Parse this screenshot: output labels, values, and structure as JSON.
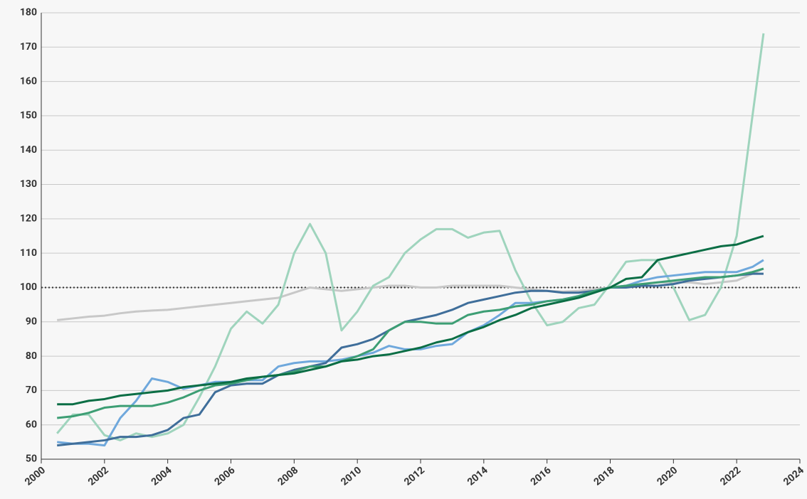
{
  "chart_data": {
    "type": "line",
    "x": [
      2000.5,
      2001,
      2001.5,
      2002,
      2002.5,
      2003,
      2003.5,
      2004,
      2004.5,
      2005,
      2005.5,
      2006,
      2006.5,
      2007,
      2007.5,
      2008,
      2008.5,
      2009,
      2009.5,
      2010,
      2010.5,
      2011,
      2011.5,
      2012,
      2012.5,
      2013,
      2013.5,
      2014,
      2014.5,
      2015,
      2015.5,
      2016,
      2016.5,
      2017,
      2017.5,
      2018,
      2018.5,
      2019,
      2019.5,
      2020,
      2020.5,
      2021,
      2021.5,
      2022,
      2022.5,
      2022.85
    ],
    "series": [
      {
        "color": "#c8c8c8",
        "values": [
          90.5,
          91,
          91.5,
          91.8,
          92.5,
          93,
          93.3,
          93.5,
          94,
          94.5,
          95,
          95.5,
          96,
          96.5,
          97,
          98.5,
          100,
          99.5,
          99,
          99.5,
          100,
          100.5,
          100.5,
          100,
          100,
          100.5,
          100.5,
          100.5,
          100.5,
          100,
          99.5,
          99,
          98.8,
          99,
          99.5,
          100,
          100.5,
          101,
          101.5,
          101.5,
          101.5,
          101,
          101.5,
          102,
          104,
          105.5
        ]
      },
      {
        "color": "#9fd4bd",
        "values": [
          57.5,
          63,
          63,
          57,
          55.5,
          57.5,
          56.5,
          57.5,
          60,
          68,
          77,
          88,
          93,
          89.5,
          95,
          110,
          118.5,
          110,
          87.5,
          93,
          100.5,
          103,
          110,
          114,
          117,
          117,
          114.5,
          116,
          116.5,
          105,
          96,
          89,
          90,
          94,
          95,
          101,
          107.5,
          108,
          108,
          100,
          90.5,
          92,
          100,
          115,
          150,
          174
        ]
      },
      {
        "color": "#6fa8dc",
        "values": [
          55,
          54.5,
          54.5,
          54,
          62,
          67,
          73.5,
          72.5,
          70.5,
          71.5,
          72.5,
          72.5,
          73,
          73,
          77,
          78,
          78.5,
          78.5,
          79,
          80,
          81,
          83,
          82,
          82,
          83,
          83.5,
          87,
          89,
          92,
          95.5,
          95.5,
          96,
          96.5,
          97.5,
          99,
          100,
          100.5,
          102,
          103,
          103.5,
          104,
          104.5,
          104.5,
          104.5,
          106,
          108
        ]
      },
      {
        "color": "#3f6e9a",
        "values": [
          54,
          54.5,
          55,
          55.5,
          56.5,
          56.5,
          57,
          58.5,
          62,
          63,
          69.5,
          71.5,
          72,
          72,
          74.5,
          76,
          77,
          78,
          82.5,
          83.5,
          85,
          87.5,
          90,
          91,
          92,
          93.5,
          95.5,
          96.5,
          97.5,
          98.5,
          99,
          99,
          98.5,
          98.5,
          99,
          100,
          100,
          100.5,
          100.5,
          101,
          102,
          102.5,
          103,
          103.5,
          104,
          104
        ]
      },
      {
        "color": "#3d9e74",
        "values": [
          62,
          62.5,
          63.5,
          65,
          65.5,
          65.5,
          65.5,
          66.5,
          68,
          70,
          71.5,
          72,
          73,
          74,
          74.5,
          75.5,
          77,
          77,
          78.5,
          80,
          82,
          87.5,
          90,
          90,
          89.5,
          89.5,
          92,
          93,
          93.5,
          94.5,
          95,
          96,
          96.5,
          97.5,
          99,
          100,
          100.5,
          101,
          101.5,
          102,
          102.5,
          103,
          103,
          103.5,
          104.5,
          105.5
        ]
      },
      {
        "color": "#0b6e45",
        "values": [
          66,
          66,
          67,
          67.5,
          68.5,
          69,
          69.5,
          70,
          71,
          71.5,
          72,
          72.5,
          73.5,
          74,
          74.5,
          75,
          76,
          77,
          78.5,
          79,
          80,
          80.5,
          81.5,
          82.5,
          84,
          85,
          87,
          88.5,
          90.5,
          92,
          94,
          95,
          96,
          97,
          98.5,
          100,
          102.5,
          103,
          108,
          109,
          110,
          111,
          112,
          112.5,
          114,
          115
        ]
      }
    ],
    "reference_line": 100,
    "xlim": [
      2000,
      2024
    ],
    "xticks": [
      2000,
      2002,
      2004,
      2006,
      2008,
      2010,
      2012,
      2014,
      2016,
      2018,
      2020,
      2022,
      2024
    ],
    "ylim": [
      50,
      180
    ],
    "yticks": [
      50,
      60,
      70,
      80,
      90,
      100,
      110,
      120,
      130,
      140,
      150,
      160,
      170,
      180
    ],
    "grid": true
  }
}
